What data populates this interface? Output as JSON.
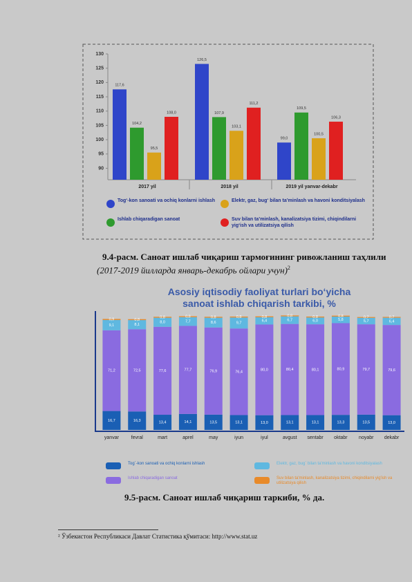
{
  "chart_data": [
    {
      "type": "bar",
      "categories": [
        "2017 yil",
        "2018 yil",
        "2019 yil yanvar-dekabr"
      ],
      "ylim": [
        86,
        130
      ],
      "yticks": [
        90,
        95,
        100,
        105,
        110,
        115,
        120,
        125,
        130
      ],
      "series": [
        {
          "name": "Tog‘-kon sanoati va ochiq konlarni ishlash",
          "color": "#2f45c9",
          "values": [
            117.6,
            126.5,
            99.0
          ],
          "value_labels": [
            "117,6",
            "126,5",
            "99,0"
          ]
        },
        {
          "name": "Ishlab chiqaradigan sanoat",
          "color": "#2e9a2e",
          "values": [
            104.2,
            107.9,
            109.5
          ],
          "value_labels": [
            "104,2",
            "107,9",
            "109,5"
          ]
        },
        {
          "name": "Elektr, gaz, bug‘ bilan ta’minlash va havoni konditsiyalash",
          "color": "#d9a21a",
          "values": [
            95.5,
            103.1,
            100.5
          ],
          "value_labels": [
            "95,5",
            "103,1",
            "100,5"
          ]
        },
        {
          "name": "Suv bilan ta’minlash, kanalizatsiya tizimi, chiqindilarni yig‘ish va utilizatsiya qilish",
          "color": "#e02020",
          "values": [
            108.0,
            111.2,
            106.3
          ],
          "value_labels": [
            "108,0",
            "111,2",
            "106,3"
          ]
        }
      ]
    },
    {
      "type": "stacked-bar",
      "title": "Asosiy iqtisodiy faoliyat turlari bo‘yicha sanoat ishlab chiqarish tarkibi, %",
      "categories": [
        "yanvar",
        "fevral",
        "mart",
        "aprel",
        "may",
        "iyun",
        "iyul",
        "avgust",
        "sentabr",
        "oktabr",
        "noyabr",
        "dekabr"
      ],
      "ylim": [
        0,
        100
      ],
      "series": [
        {
          "name": "Tog`-kon sanoati va ochiq konlarni ishlash",
          "color": "#1a5fb4",
          "values": [
            16.7,
            16.3,
            13.4,
            14.1,
            13.5,
            13.1,
            13.0,
            13.1,
            13.1,
            13.3,
            13.5,
            13.0
          ],
          "value_labels": [
            "16,7",
            "16,3",
            "13,4",
            "14,1",
            "13,5",
            "13,1",
            "13,0",
            "13,1",
            "13,1",
            "13,3",
            "13,5",
            "13,0"
          ]
        },
        {
          "name": "Ishlab chiqaradigan sanoat",
          "color": "#8a6be0",
          "values": [
            71.2,
            72.5,
            77.6,
            77.7,
            76.9,
            76.4,
            80.0,
            80.4,
            80.1,
            80.9,
            79.7,
            79.6
          ],
          "value_labels": [
            "71,2",
            "72,5",
            "77,6",
            "77,7",
            "76,9",
            "76,4",
            "80,0",
            "80,4",
            "80,1",
            "80,9",
            "79,7",
            "79,6"
          ]
        },
        {
          "name": "Elektr, gaz, bug` bilan ta'minlash va havoni konditsiyalash",
          "color": "#5fb8e0",
          "values": [
            9.1,
            8.1,
            8.0,
            7.7,
            8.6,
            9.7,
            6.4,
            6.7,
            6.0,
            5.8,
            5.7,
            6.4
          ],
          "value_labels": [
            "9,1",
            "8,1",
            "8,0",
            "7,7",
            "8,6",
            "9,7",
            "6,4",
            "6,7",
            "6,0",
            "5,8",
            "5,7",
            "6,4"
          ]
        },
        {
          "name": "Suv bilan ta'minlash, kanalizatsiya tizimi, chiqindilarni yig'ish va utilizatsiya qilish",
          "color": "#e88a2a",
          "values": [
            0.9,
            0.8,
            0.8,
            0.8,
            0.8,
            0.8,
            0.8,
            0.8,
            0.8,
            0.8,
            0.7,
            0.7
          ],
          "value_labels": [
            "0,9",
            "0,8",
            "0,8",
            "0,8",
            "0,8",
            "0,8",
            "0,8",
            "0,8",
            "0,8",
            "0,8",
            "0,7",
            "0,7"
          ]
        }
      ]
    }
  ],
  "captions": [
    {
      "bold": "9.4-расм. Саноат ишлаб чиқариш тармоғининг ривожланиш таҳлили",
      "italic": "(2017-2019 йилларда январь-декабрь ойлари учун)",
      "note": "2"
    },
    {
      "bold": "9.5-расм. Саноат ишлаб чиқариш таркиби, % да."
    }
  ],
  "footnote": {
    "mark": "²",
    "text": "Ўзбекистон Республикаси Давлат Статистика қўмитаси: http://www.stat.uz"
  }
}
